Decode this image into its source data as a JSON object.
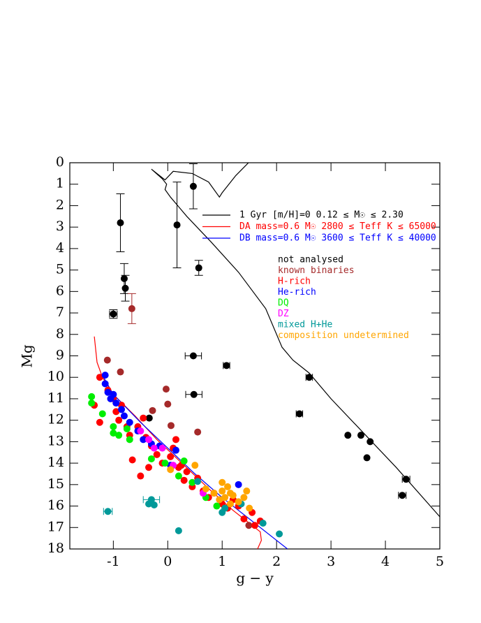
{
  "chart_data": {
    "type": "scatter",
    "x_label": "g − y",
    "y_label": "Mg",
    "xlim": [
      -1.8,
      5
    ],
    "ylim": [
      18,
      0
    ],
    "xticks": [
      -1,
      0,
      1,
      2,
      3,
      4,
      5
    ],
    "yticks": [
      0,
      1,
      2,
      3,
      4,
      5,
      6,
      7,
      8,
      9,
      10,
      11,
      12,
      13,
      14,
      15,
      16,
      17,
      18
    ],
    "curves": [
      {
        "name": "1 Gyr [m/H]=0  0.12 ≤ M☉ ≤ 2.30",
        "color": "#000000",
        "x": [
          1.6,
          1.25,
          1.0,
          0.95,
          0.75,
          0.45,
          0.1,
          -0.05,
          -0.3,
          -0.1,
          -0.02,
          -0.05,
          0.05,
          0.35,
          0.8,
          1.3,
          1.8,
          2.1,
          2.3,
          2.6,
          3.0,
          3.6,
          4.2,
          5.0
        ],
        "values": [
          -0.3,
          0.6,
          1.4,
          1.6,
          0.9,
          0.5,
          0.4,
          0.8,
          0.3,
          0.75,
          1.0,
          1.25,
          1.6,
          2.5,
          3.7,
          5.1,
          6.8,
          8.6,
          9.2,
          9.8,
          11.0,
          12.6,
          14.2,
          16.5
        ]
      },
      {
        "name": "DA mass=0.6 M☉  2800 ≤ Teff K ≤ 65000",
        "color": "#ff0000",
        "x": [
          -1.35,
          -1.3,
          -1.2,
          -1.0,
          -0.6,
          -0.2,
          0.3,
          0.8,
          1.2,
          1.5,
          1.7,
          1.72,
          1.65
        ],
        "values": [
          8.1,
          9.3,
          10.0,
          10.8,
          11.8,
          12.9,
          14.1,
          15.3,
          16.2,
          16.8,
          17.2,
          17.6,
          18.0
        ]
      },
      {
        "name": "DB mass=0.6 M☉  3600 ≤ Teff K ≤ 40000",
        "color": "#0000ff",
        "x": [
          -1.2,
          -1.0,
          -0.5,
          0,
          0.5,
          1.0,
          1.5,
          2.2
        ],
        "values": [
          9.9,
          10.8,
          12.1,
          13.3,
          14.5,
          15.6,
          16.6,
          18.0
        ]
      }
    ],
    "series": [
      {
        "name": "not analysed",
        "color": "#000000",
        "x": [
          -0.87,
          -0.8,
          -0.78,
          -1.0,
          0.47,
          0.17,
          0.57,
          0.47,
          1.08,
          0.48,
          2.6,
          2.42,
          3.31,
          3.55,
          3.72,
          3.66,
          4.38,
          4.31,
          -0.34
        ],
        "values": [
          2.8,
          5.4,
          5.85,
          7.05,
          1.1,
          2.9,
          4.9,
          9.0,
          9.45,
          10.8,
          10.0,
          11.7,
          12.7,
          12.7,
          13.0,
          13.75,
          14.75,
          15.5,
          11.9
        ],
        "yerr": [
          1.35,
          0.7,
          0.6,
          0.2,
          1.05,
          2.0,
          0.35,
          null,
          null,
          null,
          null,
          null,
          null,
          null,
          null,
          null,
          null,
          null,
          null
        ],
        "xerr": [
          null,
          null,
          null,
          0.07,
          null,
          null,
          null,
          0.15,
          0.06,
          0.15,
          0.06,
          0.06,
          null,
          null,
          null,
          null,
          0.07,
          0.07,
          null
        ]
      },
      {
        "name": "known binaries",
        "color": "#a52a2a",
        "x": [
          -0.66,
          -1.11,
          -0.87,
          -0.03,
          0,
          -0.28,
          0.06,
          0.55,
          1.49
        ],
        "values": [
          6.8,
          9.2,
          9.75,
          10.55,
          11.25,
          11.55,
          12.25,
          12.55,
          16.9
        ],
        "yerr": [
          0.7,
          null,
          null,
          null,
          null,
          null,
          null,
          null,
          null
        ]
      },
      {
        "name": "H-rich",
        "color": "#ff0000",
        "x": [
          -1.25,
          -1.35,
          -1.25,
          -1.1,
          -1.0,
          -0.95,
          -0.9,
          -0.85,
          -0.75,
          -0.7,
          -0.65,
          -0.5,
          -0.55,
          -0.45,
          -0.4,
          -0.3,
          -0.2,
          -0.1,
          0.05,
          0.1,
          0.15,
          0.2,
          0.3,
          0.35,
          0.45,
          0.55,
          0.65,
          0.75,
          0.85,
          1.0,
          1.1,
          1.2,
          1.3,
          1.4,
          1.55,
          1.7,
          1.6,
          0.25,
          -0.35
        ],
        "values": [
          10.0,
          11.3,
          12.1,
          10.6,
          11.0,
          11.6,
          12.0,
          11.3,
          12.3,
          12.7,
          13.85,
          14.6,
          12.3,
          11.9,
          12.8,
          13.2,
          13.6,
          14.0,
          13.7,
          13.3,
          12.9,
          14.2,
          14.8,
          14.4,
          15.1,
          14.7,
          15.3,
          15.6,
          15.4,
          15.9,
          16.1,
          15.7,
          16.0,
          16.6,
          16.3,
          16.7,
          16.9,
          14.1,
          14.2
        ]
      },
      {
        "name": "He-rich",
        "color": "#0000ff",
        "x": [
          -1.15,
          -1.15,
          -1.1,
          -1.05,
          -1.0,
          -0.95,
          -0.85,
          -0.8,
          -0.7,
          -0.55,
          -0.45,
          -0.3,
          -0.15,
          0.05,
          0.15,
          1.3
        ],
        "values": [
          9.9,
          10.3,
          10.7,
          11.0,
          10.8,
          11.2,
          11.5,
          11.8,
          12.1,
          12.5,
          12.9,
          13.1,
          13.2,
          14.1,
          13.4,
          15.0
        ]
      },
      {
        "name": "DQ",
        "color": "#00ee00",
        "x": [
          -1.4,
          -1.4,
          -1.2,
          -1.0,
          -1.0,
          -0.9,
          -0.75,
          -0.7,
          -0.3,
          -0.05,
          0.2,
          0.45,
          0.7,
          0.9,
          1.05,
          0.3
        ],
        "values": [
          10.9,
          11.2,
          11.7,
          12.3,
          12.6,
          12.7,
          12.4,
          12.9,
          13.8,
          14.0,
          14.6,
          14.9,
          15.6,
          16.0,
          16.1,
          13.9
        ]
      },
      {
        "name": "DZ",
        "color": "#ff00ff",
        "x": [
          -0.5,
          -0.35,
          -0.25,
          -0.1,
          0.1,
          0.65
        ],
        "values": [
          12.5,
          12.9,
          13.3,
          13.3,
          14.1,
          15.4
        ]
      },
      {
        "name": "mixed H+He",
        "color": "#009999",
        "x": [
          -1.1,
          -0.35,
          -0.3,
          -0.25,
          0.2,
          1.0,
          1.05,
          1.35,
          1.75,
          2.05,
          0.55
        ],
        "values": [
          16.25,
          15.9,
          15.7,
          15.95,
          17.15,
          16.3,
          16.1,
          15.9,
          16.8,
          17.3,
          14.85
        ],
        "xerr": [
          0.08,
          null,
          0.15,
          null,
          null,
          null,
          null,
          null,
          null,
          null,
          null
        ]
      },
      {
        "name": "composition undetermined",
        "color": "#ffa500",
        "x": [
          0.05,
          0.5,
          0.7,
          0.85,
          1.0,
          1.0,
          1.05,
          1.1,
          1.15,
          1.2,
          1.15,
          1.3,
          1.4,
          1.45,
          1.5,
          0.95
        ],
        "values": [
          14.3,
          14.1,
          15.2,
          15.4,
          14.9,
          15.3,
          15.6,
          15.1,
          15.4,
          15.5,
          15.9,
          15.8,
          15.6,
          15.3,
          16.1,
          15.7
        ]
      }
    ]
  }
}
